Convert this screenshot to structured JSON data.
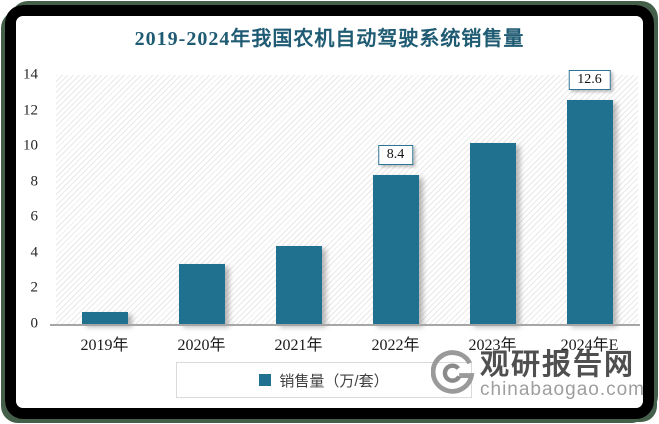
{
  "chart_data": {
    "type": "bar",
    "title": "2019-2024年我国农机自动驾驶系统销售量",
    "categories": [
      "2019年",
      "2020年",
      "2021年",
      "2022年",
      "2023年",
      "2024年E"
    ],
    "values": [
      0.7,
      3.4,
      4.4,
      8.4,
      10.2,
      12.6
    ],
    "point_labels": [
      "",
      "",
      "",
      "8.4",
      "",
      "12.6"
    ],
    "ylim": [
      0,
      14
    ],
    "yticks": [
      0,
      2,
      4,
      6,
      8,
      10,
      12,
      14
    ],
    "xlabel": "",
    "ylabel": "",
    "grid": false,
    "legend": [
      "销售量（万/套）"
    ],
    "legend_position": "bottom",
    "bar_color": "#20708F"
  },
  "legend": {
    "label": "销售量（万/套）"
  },
  "watermark": {
    "brand": "观研报告网",
    "domain": "chinabaogao.com"
  },
  "colors": {
    "title": "#1F5B73",
    "bar": "#20708F",
    "axis_line": "#A6A6A6",
    "frame": "#000000",
    "frame_accent": "#44604A",
    "label_box_border": "#2E7593"
  }
}
